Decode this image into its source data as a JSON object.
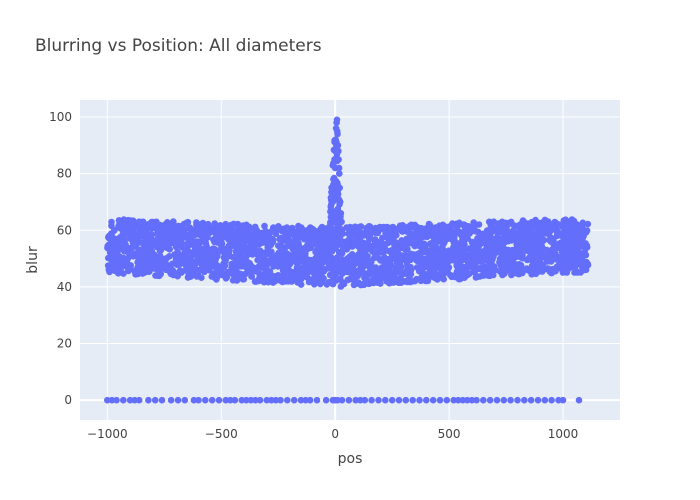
{
  "chart_data": {
    "type": "scatter",
    "title": "Blurring vs Position: All diameters",
    "xlabel": "pos",
    "ylabel": "blur",
    "xlim": [
      -1120,
      1250
    ],
    "ylim": [
      -7,
      106
    ],
    "xticks": [
      -1000,
      -500,
      0,
      500,
      1000
    ],
    "xtick_labels": [
      "−1000",
      "−500",
      "0",
      "500",
      "1000"
    ],
    "yticks": [
      0,
      20,
      40,
      60,
      80,
      100
    ],
    "ytick_labels": [
      "0",
      "20",
      "40",
      "60",
      "80",
      "100"
    ],
    "grid": true,
    "legend": "none",
    "colors": {
      "marker": "#636efa",
      "plot_bg": "#e5ecf6",
      "grid": "#ffffff",
      "paper_bg": "#ffffff"
    },
    "series": [
      {
        "description_bands": [
          {
            "x_range": [
              -1000,
              1110
            ],
            "y_range": [
              44,
              62
            ]
          },
          {
            "x_range": [
              -60,
              60
            ],
            "y_range": [
              60,
              99
            ]
          }
        ],
        "zero_row_x": [
          -1000,
          -980,
          -960,
          -930,
          -900,
          -880,
          -860,
          -820,
          -790,
          -760,
          -720,
          -690,
          -660,
          -620,
          -600,
          -570,
          -540,
          -510,
          -480,
          -460,
          -440,
          -410,
          -390,
          -370,
          -350,
          -330,
          -300,
          -280,
          -260,
          -240,
          -210,
          -180,
          -150,
          -130,
          -110,
          -80,
          -40,
          -10,
          0,
          10,
          30,
          60,
          90,
          110,
          130,
          160,
          190,
          220,
          250,
          280,
          310,
          340,
          370,
          400,
          430,
          460,
          490,
          520,
          540,
          560,
          580,
          600,
          620,
          650,
          680,
          710,
          740,
          770,
          800,
          830,
          860,
          890,
          920,
          950,
          980,
          1000,
          1070
        ],
        "peak_points": [
          [
            -10,
            70
          ],
          [
            -5,
            75
          ],
          [
            0,
            82
          ],
          [
            0,
            88
          ],
          [
            2,
            92
          ],
          [
            4,
            96
          ],
          [
            6,
            98
          ],
          [
            8,
            99
          ],
          [
            -15,
            65
          ],
          [
            -20,
            62
          ],
          [
            10,
            94
          ],
          [
            12,
            90
          ],
          [
            15,
            85
          ],
          [
            18,
            80
          ],
          [
            20,
            75
          ],
          [
            22,
            70
          ],
          [
            25,
            66
          ],
          [
            -8,
            78
          ],
          [
            -3,
            85
          ],
          [
            5,
            90
          ],
          [
            9,
            95
          ],
          [
            14,
            88
          ],
          [
            17,
            82
          ],
          [
            28,
            63
          ]
        ]
      }
    ]
  }
}
